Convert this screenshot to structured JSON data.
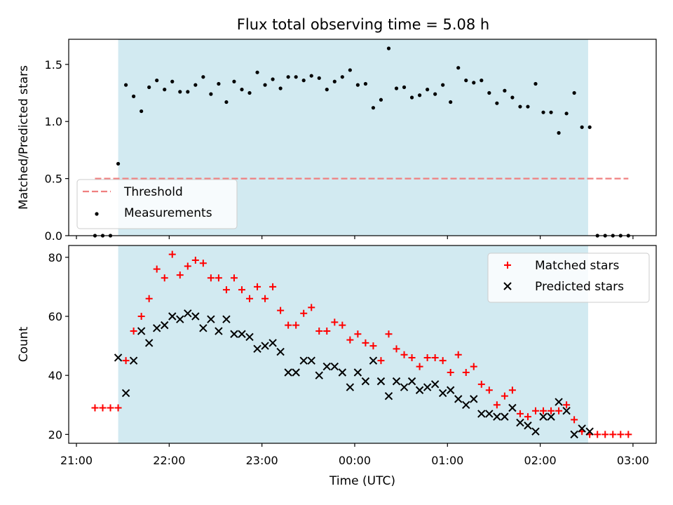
{
  "title": "Flux total observing time = 5.08 h",
  "chart_data": [
    {
      "type": "scatter",
      "panel": "top",
      "ylabel": "Matched/Predicted stars",
      "ylim": [
        0,
        1.72
      ],
      "yticks": [
        "0.0",
        "0.5",
        "1.0",
        "1.5"
      ],
      "ytick_values": [
        0,
        0.5,
        1.0,
        1.5
      ],
      "xlim": [
        "20:55",
        "03:15"
      ],
      "observing_window": [
        "21:27",
        "02:31"
      ],
      "band_color": "#add8e6",
      "threshold": {
        "name": "Threshold",
        "value": 0.5,
        "x_range": [
          "21:12",
          "02:57"
        ],
        "color": "#f08080"
      },
      "legend": {
        "position": "lower-left",
        "entries": [
          "Threshold",
          "Measurements"
        ]
      },
      "series": [
        {
          "name": "Measurements",
          "color": "#000000",
          "x": [
            "21:12",
            "21:17",
            "21:22",
            "21:27",
            "21:32",
            "21:37",
            "21:42",
            "21:47",
            "21:52",
            "21:57",
            "22:02",
            "22:07",
            "22:12",
            "22:17",
            "22:22",
            "22:27",
            "22:32",
            "22:37",
            "22:42",
            "22:47",
            "22:52",
            "22:57",
            "23:02",
            "23:07",
            "23:12",
            "23:17",
            "23:22",
            "23:27",
            "23:32",
            "23:37",
            "23:42",
            "23:47",
            "23:52",
            "23:57",
            "00:02",
            "00:07",
            "00:12",
            "00:17",
            "00:22",
            "00:27",
            "00:32",
            "00:37",
            "00:42",
            "00:47",
            "00:52",
            "00:57",
            "01:02",
            "01:07",
            "01:12",
            "01:17",
            "01:22",
            "01:27",
            "01:32",
            "01:37",
            "01:42",
            "01:47",
            "01:52",
            "01:57",
            "02:02",
            "02:07",
            "02:12",
            "02:17",
            "02:22",
            "02:27",
            "02:32",
            "02:37",
            "02:42",
            "02:47",
            "02:52",
            "02:57"
          ],
          "y": [
            0,
            0,
            0,
            0.63,
            1.32,
            1.22,
            1.09,
            1.3,
            1.36,
            1.28,
            1.35,
            1.26,
            1.26,
            1.32,
            1.39,
            1.24,
            1.33,
            1.17,
            1.35,
            1.28,
            1.25,
            1.43,
            1.32,
            1.37,
            1.29,
            1.39,
            1.39,
            1.36,
            1.4,
            1.38,
            1.28,
            1.35,
            1.39,
            1.45,
            1.32,
            1.33,
            1.12,
            1.19,
            1.64,
            1.29,
            1.3,
            1.21,
            1.23,
            1.28,
            1.24,
            1.32,
            1.17,
            1.47,
            1.36,
            1.34,
            1.36,
            1.25,
            1.16,
            1.27,
            1.21,
            1.13,
            1.13,
            1.33,
            1.08,
            1.08,
            0.9,
            1.07,
            1.25,
            0.95,
            0.95,
            0,
            0,
            0,
            0,
            0
          ]
        }
      ]
    },
    {
      "type": "scatter",
      "panel": "bottom",
      "xlabel": "Time (UTC)",
      "ylabel": "Count",
      "ylim": [
        17,
        84
      ],
      "yticks": [
        "20",
        "40",
        "60",
        "80"
      ],
      "ytick_values": [
        20,
        40,
        60,
        80
      ],
      "xlim": [
        "20:55",
        "03:15"
      ],
      "xticks": [
        "21:00",
        "22:00",
        "23:00",
        "00:00",
        "01:00",
        "02:00",
        "03:00"
      ],
      "observing_window": [
        "21:27",
        "02:31"
      ],
      "band_color": "#add8e6",
      "legend": {
        "position": "top-right",
        "entries": [
          "Matched stars",
          "Predicted stars"
        ]
      },
      "series": [
        {
          "name": "Matched stars",
          "marker": "plus",
          "color": "#ff0000",
          "x": [
            "21:12",
            "21:17",
            "21:22",
            "21:27",
            "21:32",
            "21:37",
            "21:42",
            "21:47",
            "21:52",
            "21:57",
            "22:02",
            "22:07",
            "22:12",
            "22:17",
            "22:22",
            "22:27",
            "22:32",
            "22:37",
            "22:42",
            "22:47",
            "22:52",
            "22:57",
            "23:02",
            "23:07",
            "23:12",
            "23:17",
            "23:22",
            "23:27",
            "23:32",
            "23:37",
            "23:42",
            "23:47",
            "23:52",
            "23:57",
            "00:02",
            "00:07",
            "00:12",
            "00:17",
            "00:22",
            "00:27",
            "00:32",
            "00:37",
            "00:42",
            "00:47",
            "00:52",
            "00:57",
            "01:02",
            "01:07",
            "01:12",
            "01:17",
            "01:22",
            "01:27",
            "01:32",
            "01:37",
            "01:42",
            "01:47",
            "01:52",
            "01:57",
            "02:02",
            "02:07",
            "02:12",
            "02:17",
            "02:22",
            "02:27",
            "02:32",
            "02:37",
            "02:42",
            "02:47",
            "02:52",
            "02:57"
          ],
          "y": [
            29,
            29,
            29,
            29,
            45,
            55,
            60,
            66,
            76,
            73,
            81,
            74,
            77,
            79,
            78,
            73,
            73,
            69,
            73,
            69,
            66,
            70,
            66,
            70,
            62,
            57,
            57,
            61,
            63,
            55,
            55,
            58,
            57,
            52,
            54,
            51,
            50,
            45,
            54,
            49,
            47,
            46,
            43,
            46,
            46,
            45,
            41,
            47,
            41,
            43,
            37,
            35,
            30,
            33,
            35,
            27,
            26,
            28,
            28,
            28,
            28,
            30,
            25,
            21,
            20,
            20,
            20,
            20,
            20,
            20
          ]
        },
        {
          "name": "Predicted stars",
          "marker": "x",
          "color": "#000000",
          "x": [
            "21:27",
            "21:32",
            "21:37",
            "21:42",
            "21:47",
            "21:52",
            "21:57",
            "22:02",
            "22:07",
            "22:12",
            "22:17",
            "22:22",
            "22:27",
            "22:32",
            "22:37",
            "22:42",
            "22:47",
            "22:52",
            "22:57",
            "23:02",
            "23:07",
            "23:12",
            "23:17",
            "23:22",
            "23:27",
            "23:32",
            "23:37",
            "23:42",
            "23:47",
            "23:52",
            "23:57",
            "00:02",
            "00:07",
            "00:12",
            "00:17",
            "00:22",
            "00:27",
            "00:32",
            "00:37",
            "00:42",
            "00:47",
            "00:52",
            "00:57",
            "01:02",
            "01:07",
            "01:12",
            "01:17",
            "01:22",
            "01:27",
            "01:32",
            "01:37",
            "01:42",
            "01:47",
            "01:52",
            "01:57",
            "02:02",
            "02:07",
            "02:12",
            "02:17",
            "02:22",
            "02:27",
            "02:32"
          ],
          "y": [
            46,
            34,
            45,
            55,
            51,
            56,
            57,
            60,
            59,
            61,
            60,
            56,
            59,
            55,
            59,
            54,
            54,
            53,
            49,
            50,
            51,
            48,
            41,
            41,
            45,
            45,
            40,
            43,
            43,
            41,
            36,
            41,
            38,
            45,
            38,
            33,
            38,
            36,
            38,
            35,
            36,
            37,
            34,
            35,
            32,
            30,
            32,
            27,
            27,
            26,
            26,
            29,
            24,
            23,
            21,
            26,
            26,
            31,
            28,
            20,
            22,
            21
          ]
        }
      ]
    }
  ]
}
